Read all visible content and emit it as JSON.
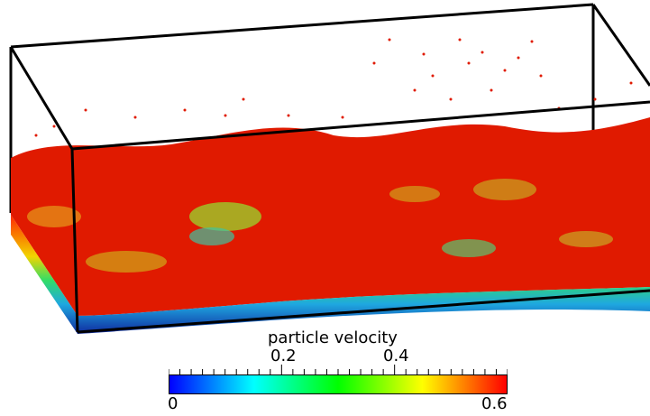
{
  "legend": {
    "title": "particle velocity",
    "upper_ticks": [
      "0.2",
      "0.4"
    ],
    "lower_ticks": [
      "0",
      "0.6"
    ],
    "range": [
      0,
      0.6
    ],
    "colormap": [
      "#0000ff",
      "#00ffff",
      "#00ff00",
      "#ffff00",
      "#ff0000"
    ]
  },
  "colors": {
    "fluid_surface": "#dd1100",
    "fluid_bottom": "#1a3fb0",
    "box_edges": "#000000"
  }
}
